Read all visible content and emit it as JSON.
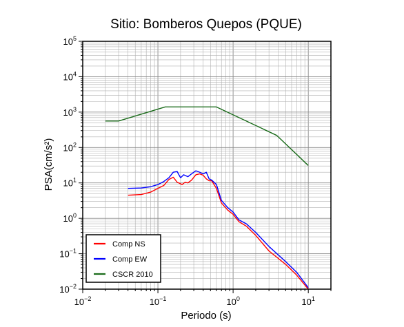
{
  "chart_data": {
    "type": "line",
    "title": "Sitio: Bomberos Quepos (PQUE)",
    "xlabel": "Periodo (s)",
    "ylabel": "PSA(cm/s²)",
    "x_scale": "log",
    "y_scale": "log",
    "xlim": [
      0.01,
      20
    ],
    "ylim": [
      0.01,
      100000
    ],
    "x_ticks": [
      {
        "base": "10",
        "exp": "−2"
      },
      {
        "base": "10",
        "exp": "−1"
      },
      {
        "base": "10",
        "exp": "0"
      },
      {
        "base": "10",
        "exp": "1"
      }
    ],
    "y_ticks": [
      {
        "base": "10",
        "exp": "−2"
      },
      {
        "base": "10",
        "exp": "−1"
      },
      {
        "base": "10",
        "exp": "0"
      },
      {
        "base": "10",
        "exp": "1"
      },
      {
        "base": "10",
        "exp": "2"
      },
      {
        "base": "10",
        "exp": "3"
      },
      {
        "base": "10",
        "exp": "4"
      },
      {
        "base": "10",
        "exp": "5"
      }
    ],
    "grid": true,
    "legend_position": "bottom-left",
    "series": [
      {
        "name": "Comp NS",
        "color": "#ff0000",
        "points": [
          [
            0.04,
            4.5
          ],
          [
            0.06,
            4.7
          ],
          [
            0.08,
            5.5
          ],
          [
            0.1,
            7.0
          ],
          [
            0.12,
            8.5
          ],
          [
            0.14,
            12.5
          ],
          [
            0.16,
            14.5
          ],
          [
            0.18,
            10.5
          ],
          [
            0.21,
            9.0
          ],
          [
            0.23,
            10.5
          ],
          [
            0.25,
            10.0
          ],
          [
            0.28,
            12.0
          ],
          [
            0.32,
            17.0
          ],
          [
            0.36,
            18.0
          ],
          [
            0.4,
            16.5
          ],
          [
            0.44,
            13.0
          ],
          [
            0.48,
            11.5
          ],
          [
            0.52,
            11.5
          ],
          [
            0.6,
            7.0
          ],
          [
            0.7,
            2.7
          ],
          [
            0.85,
            1.7
          ],
          [
            1.0,
            1.3
          ],
          [
            1.2,
            0.8
          ],
          [
            1.5,
            0.6
          ],
          [
            2.0,
            0.33
          ],
          [
            3.0,
            0.12
          ],
          [
            5.0,
            0.05
          ],
          [
            7.0,
            0.025
          ],
          [
            10.0,
            0.01
          ]
        ]
      },
      {
        "name": "Comp EW",
        "color": "#0000ff",
        "points": [
          [
            0.04,
            7.0
          ],
          [
            0.06,
            7.2
          ],
          [
            0.08,
            7.8
          ],
          [
            0.1,
            9.0
          ],
          [
            0.12,
            11.0
          ],
          [
            0.14,
            14.0
          ],
          [
            0.16,
            20.0
          ],
          [
            0.18,
            21.0
          ],
          [
            0.2,
            14.0
          ],
          [
            0.22,
            17.0
          ],
          [
            0.25,
            15.0
          ],
          [
            0.28,
            18.0
          ],
          [
            0.32,
            22.0
          ],
          [
            0.36,
            20.0
          ],
          [
            0.4,
            18.0
          ],
          [
            0.44,
            20.0
          ],
          [
            0.48,
            13.0
          ],
          [
            0.52,
            12.0
          ],
          [
            0.6,
            9.0
          ],
          [
            0.7,
            3.2
          ],
          [
            0.85,
            2.0
          ],
          [
            1.0,
            1.5
          ],
          [
            1.2,
            0.9
          ],
          [
            1.5,
            0.7
          ],
          [
            2.0,
            0.4
          ],
          [
            3.0,
            0.16
          ],
          [
            5.0,
            0.06
          ],
          [
            7.0,
            0.03
          ],
          [
            10.0,
            0.011
          ]
        ]
      },
      {
        "name": "CSCR 2010",
        "color": "#1a6b1a",
        "points": [
          [
            0.02,
            560
          ],
          [
            0.03,
            560
          ],
          [
            0.125,
            1400
          ],
          [
            0.6,
            1400
          ],
          [
            3.8,
            220
          ],
          [
            10.0,
            31
          ]
        ]
      }
    ]
  }
}
